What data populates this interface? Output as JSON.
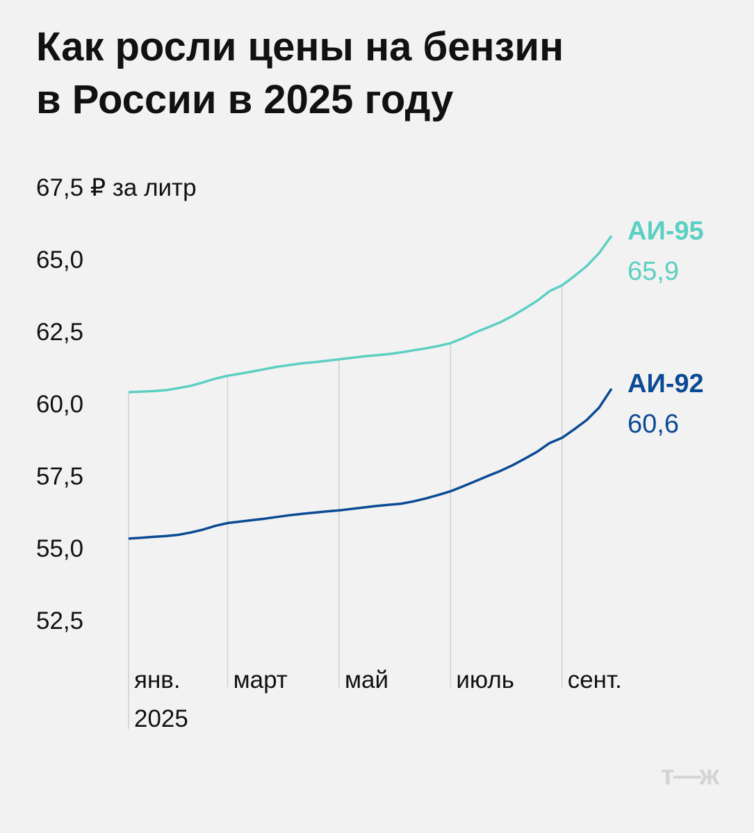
{
  "chart_data": {
    "type": "line",
    "title": "Как росли цены на бензин\nв России в 2025 году",
    "categories": [
      "янв.\n2025",
      null,
      null,
      null,
      null,
      null,
      null,
      null,
      "март",
      null,
      null,
      null,
      null,
      null,
      null,
      null,
      null,
      "май",
      null,
      null,
      null,
      null,
      null,
      null,
      null,
      null,
      "июль",
      null,
      null,
      null,
      null,
      null,
      null,
      null,
      null,
      "сент.",
      null,
      null,
      null,
      null
    ],
    "series": [
      {
        "name": "АИ-95",
        "color": "#5ccfc3",
        "values": [
          60.48,
          60.5,
          60.52,
          60.55,
          60.62,
          60.7,
          60.82,
          60.95,
          61.05,
          61.12,
          61.2,
          61.28,
          61.36,
          61.42,
          61.48,
          61.52,
          61.57,
          61.62,
          61.67,
          61.72,
          61.76,
          61.8,
          61.86,
          61.93,
          62.0,
          62.08,
          62.18,
          62.35,
          62.55,
          62.72,
          62.9,
          63.12,
          63.38,
          63.65,
          63.98,
          64.18,
          64.5,
          64.85,
          65.3,
          65.9
        ],
        "value_labels": [
          null,
          null,
          null,
          null,
          null,
          null,
          null,
          null,
          null,
          null,
          null,
          null,
          null,
          null,
          null,
          null,
          null,
          null,
          null,
          null,
          null,
          null,
          null,
          null,
          null,
          null,
          null,
          null,
          null,
          null,
          null,
          null,
          null,
          null,
          null,
          null,
          null,
          null,
          null,
          "65,9"
        ]
      },
      {
        "name": "АИ-92",
        "color": "#0b4a94",
        "values": [
          55.41,
          55.44,
          55.47,
          55.5,
          55.54,
          55.62,
          55.72,
          55.85,
          55.95,
          56.0,
          56.05,
          56.1,
          56.16,
          56.22,
          56.27,
          56.31,
          56.35,
          56.39,
          56.44,
          56.49,
          56.54,
          56.58,
          56.62,
          56.7,
          56.8,
          56.92,
          57.05,
          57.22,
          57.4,
          57.58,
          57.75,
          57.95,
          58.18,
          58.42,
          58.72,
          58.9,
          59.2,
          59.52,
          59.95,
          60.6
        ],
        "value_labels": [
          null,
          null,
          null,
          null,
          null,
          null,
          null,
          null,
          null,
          null,
          null,
          null,
          null,
          null,
          null,
          null,
          null,
          null,
          null,
          null,
          null,
          null,
          null,
          null,
          null,
          null,
          null,
          null,
          null,
          null,
          null,
          null,
          null,
          null,
          null,
          null,
          null,
          null,
          null,
          "60,6"
        ]
      }
    ],
    "ylim": [
      52.5,
      67.5
    ],
    "yticks": [
      {
        "value": 52.5,
        "label": "52,5"
      },
      {
        "value": 55,
        "label": "55,0"
      },
      {
        "value": 57.5,
        "label": "57,5"
      },
      {
        "value": 60,
        "label": "60,0"
      },
      {
        "value": 62.5,
        "label": "62,5"
      },
      {
        "value": 65,
        "label": "65,0"
      },
      {
        "value": 67.5,
        "label": "67,5 ₽ за литр"
      }
    ],
    "logo": "т—ж"
  }
}
